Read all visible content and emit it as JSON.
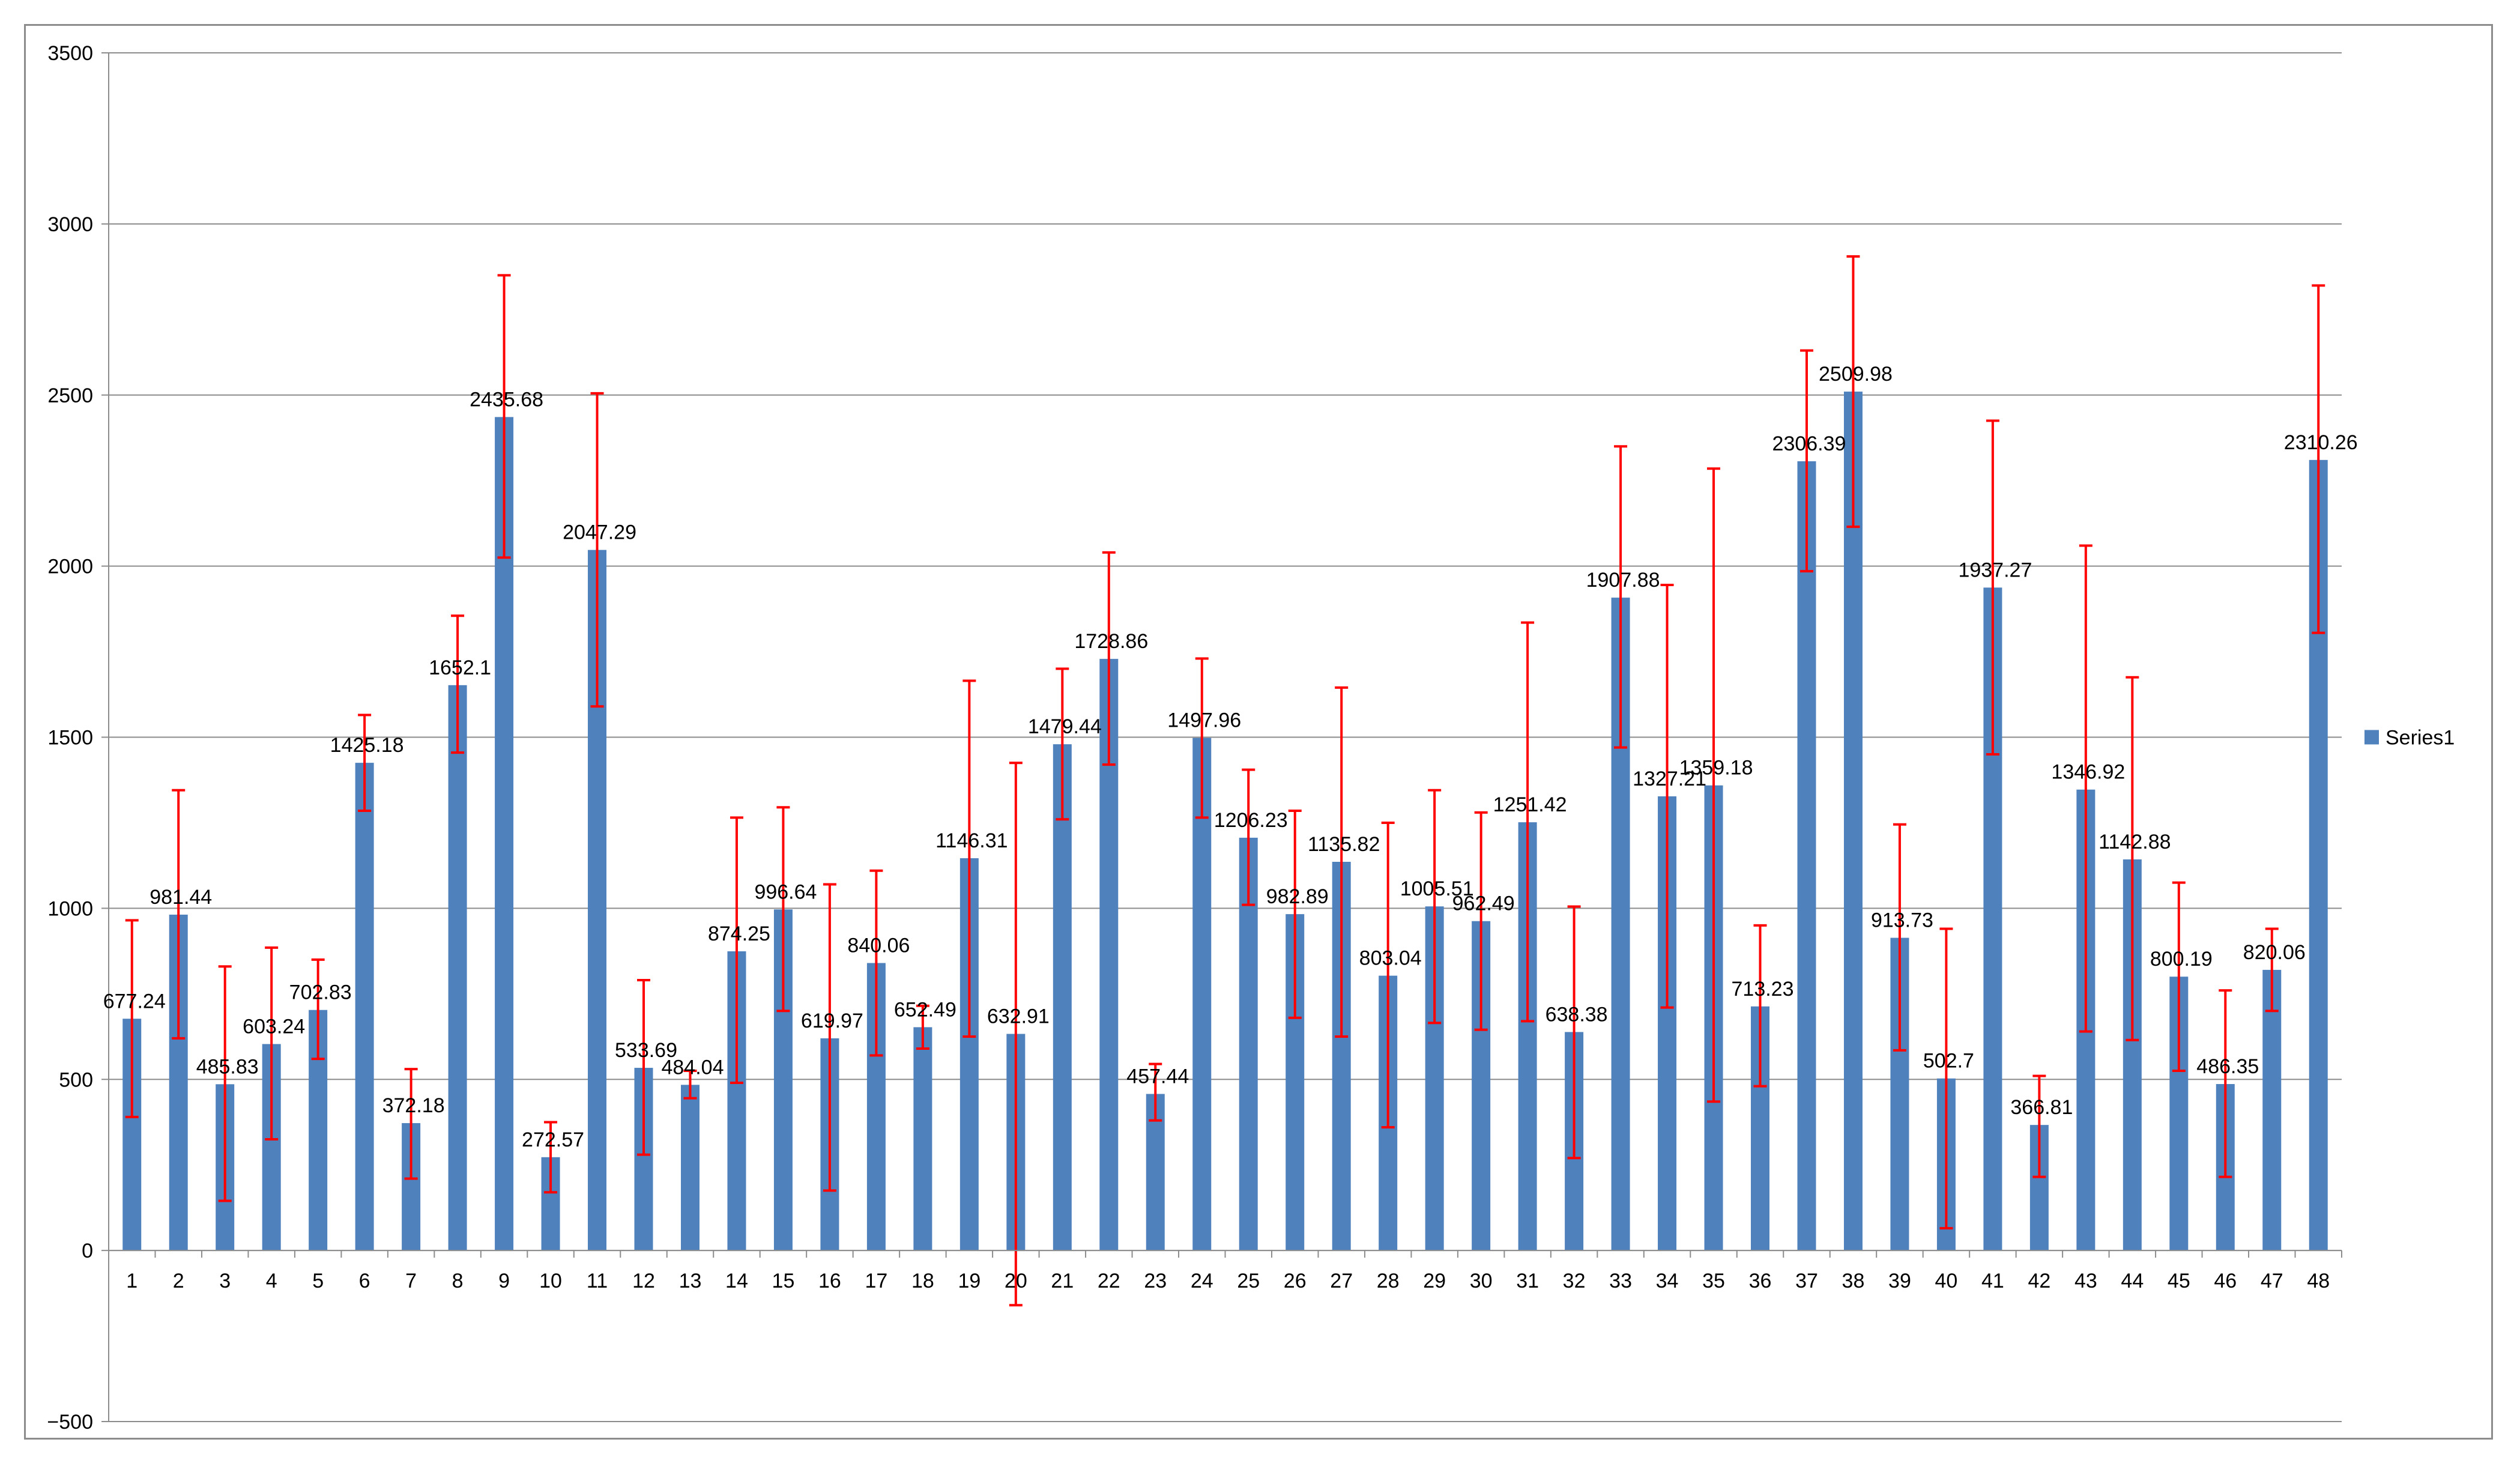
{
  "chart_data": {
    "type": "bar",
    "title": "",
    "xlabel": "",
    "ylabel": "",
    "ylim": [
      -500,
      3500
    ],
    "yticks": [
      -500,
      0,
      500,
      1000,
      1500,
      2000,
      2500,
      3000,
      3500
    ],
    "grid": true,
    "legend_position": "right",
    "categories": [
      "1",
      "2",
      "3",
      "4",
      "5",
      "6",
      "7",
      "8",
      "9",
      "10",
      "11",
      "12",
      "13",
      "14",
      "15",
      "16",
      "17",
      "18",
      "19",
      "20",
      "21",
      "22",
      "23",
      "24",
      "25",
      "26",
      "27",
      "28",
      "29",
      "30",
      "31",
      "32",
      "33",
      "34",
      "35",
      "36",
      "37",
      "38",
      "39",
      "40",
      "41",
      "42",
      "43",
      "44",
      "45",
      "46",
      "47",
      "48"
    ],
    "series": [
      {
        "name": "Series1",
        "color": "#4f81bd",
        "error_color": "#ff0000",
        "values": [
          677.24,
          981.44,
          485.83,
          603.24,
          702.83,
          1425.18,
          372.18,
          1652.1,
          2435.68,
          272.57,
          2047.29,
          533.69,
          484.04,
          874.25,
          996.64,
          619.97,
          840.06,
          652.49,
          1146.31,
          632.91,
          1479.44,
          1728.86,
          457.44,
          1497.96,
          1206.23,
          982.89,
          1135.82,
          803.04,
          1005.51,
          962.49,
          1251.42,
          638.38,
          1907.88,
          1327.21,
          1359.18,
          713.23,
          2306.39,
          2509.98,
          913.73,
          502.7,
          1937.27,
          366.81,
          1346.92,
          1142.88,
          800.19,
          486.35,
          820.06,
          2310.26
        ],
        "error_low": [
          390,
          620,
          145,
          325,
          560,
          1285,
          210,
          1455,
          2025,
          170,
          1590,
          280,
          445,
          490,
          700,
          175,
          570,
          590,
          625,
          -160,
          1260,
          1420,
          380,
          1265,
          1010,
          680,
          625,
          360,
          665,
          645,
          670,
          270,
          1470,
          710,
          435,
          480,
          1985,
          2115,
          585,
          65,
          1450,
          215,
          640,
          615,
          525,
          215,
          700,
          1805
        ],
        "error_high": [
          965,
          1345,
          830,
          885,
          850,
          1565,
          530,
          1855,
          2850,
          375,
          2505,
          790,
          525,
          1265,
          1295,
          1070,
          1110,
          715,
          1665,
          1425,
          1700,
          2040,
          545,
          1730,
          1405,
          1285,
          1645,
          1250,
          1345,
          1280,
          1835,
          1005,
          2350,
          1945,
          2285,
          950,
          2630,
          2905,
          1245,
          940,
          2425,
          510,
          2060,
          1675,
          1075,
          760,
          940,
          2820
        ]
      }
    ]
  }
}
